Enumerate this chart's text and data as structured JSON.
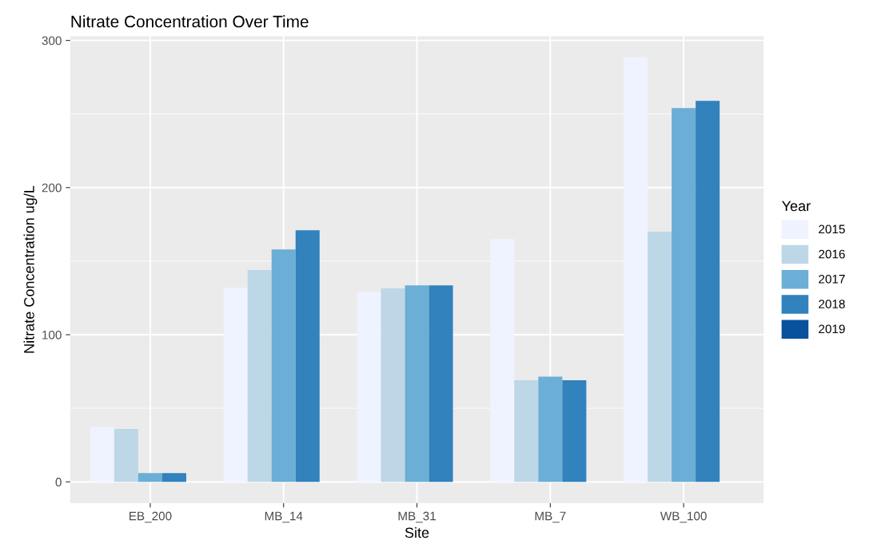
{
  "chart_data": {
    "type": "bar",
    "title": "Nitrate Concentration Over Time",
    "xlabel": "Site",
    "ylabel": "Nitrate Concentration ug/L",
    "legend_title": "Year",
    "categories": [
      "EB_200",
      "MB_14",
      "MB_31",
      "MB_7",
      "WB_100"
    ],
    "series": [
      {
        "name": "2015",
        "color": "#eff3ff",
        "values": [
          37.5,
          132,
          129,
          165,
          288.5
        ]
      },
      {
        "name": "2016",
        "color": "#bdd7e7",
        "values": [
          36,
          144,
          131.5,
          69,
          170
        ]
      },
      {
        "name": "2017",
        "color": "#6baed6",
        "values": [
          6,
          158,
          133.5,
          71.5,
          254
        ]
      },
      {
        "name": "2018",
        "color": "#3182bd",
        "values": [
          6,
          171,
          133.5,
          69,
          259
        ]
      },
      {
        "name": "2019",
        "color": "#08519c",
        "values": [
          null,
          null,
          null,
          null,
          null
        ]
      }
    ],
    "ylim": [
      -14.4,
      302.9
    ],
    "yticks": [
      0,
      100,
      200,
      300
    ],
    "grid": true,
    "legend": "right"
  }
}
